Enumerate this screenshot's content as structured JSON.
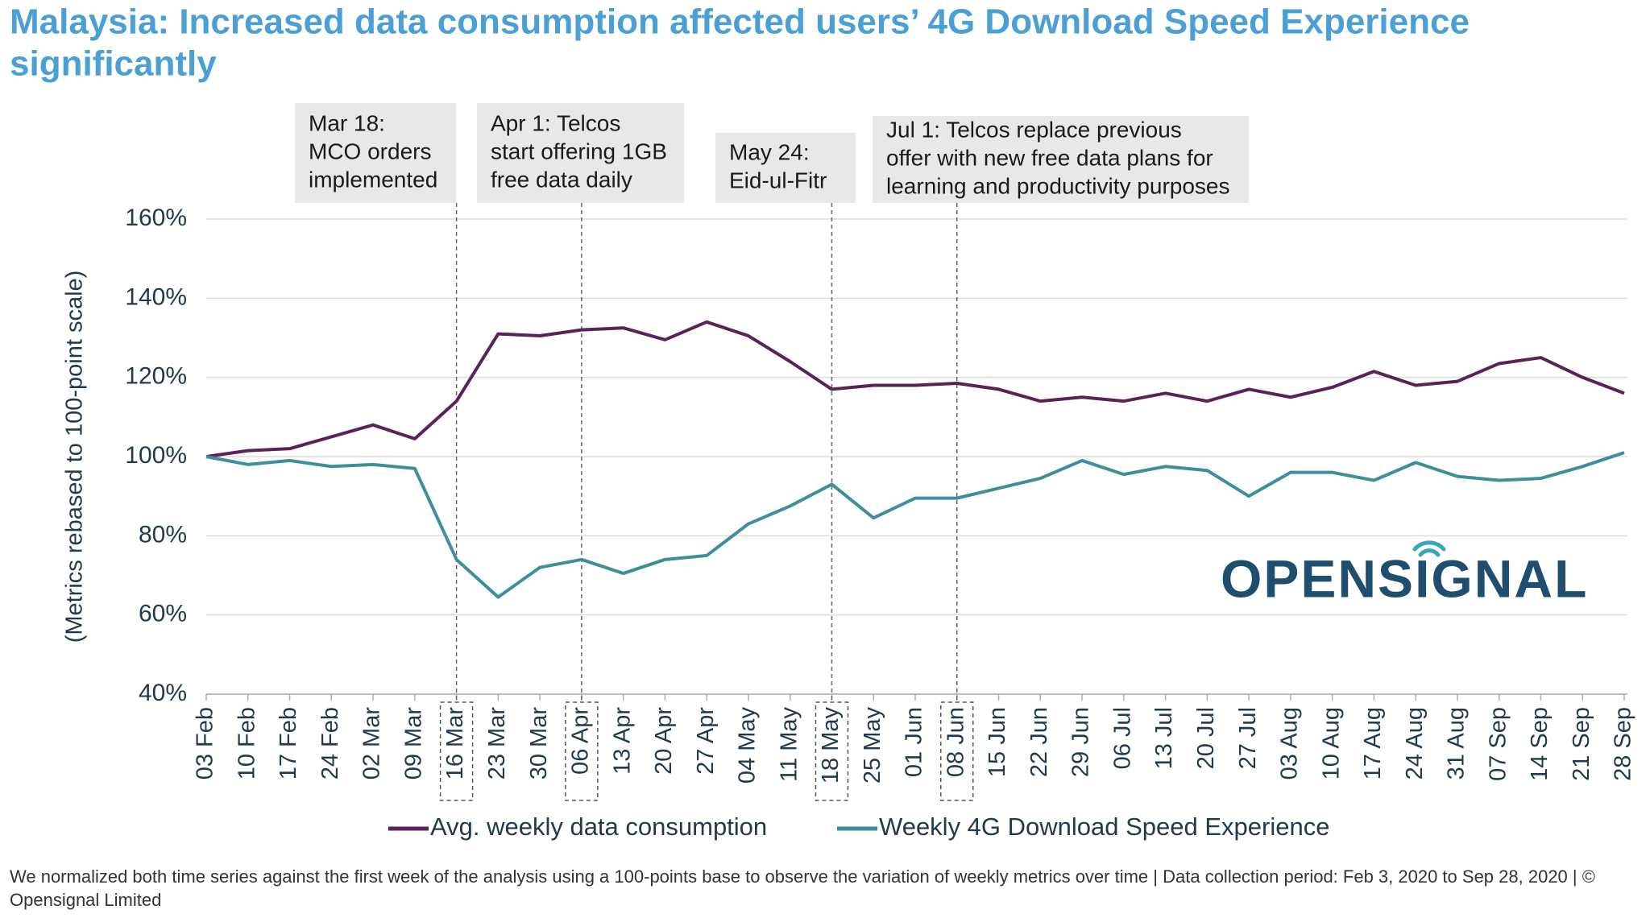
{
  "chart_data": {
    "type": "line",
    "title": [
      "Malaysia: Increased data consumption affected users’ 4G Download Speed Experience",
      "significantly"
    ],
    "y_label": "(Metrics rebased to 100-point scale)",
    "categories": [
      "03 Feb",
      "10 Feb",
      "17 Feb",
      "24 Feb",
      "02 Mar",
      "09 Mar",
      "16 Mar",
      "23 Mar",
      "30 Mar",
      "06 Apr",
      "13 Apr",
      "20 Apr",
      "27 Apr",
      "04 May",
      "11 May",
      "18 May",
      "25 May",
      "01 Jun",
      "08 Jun",
      "15 Jun",
      "22 Jun",
      "29 Jun",
      "06 Jul",
      "13 Jul",
      "20 Jul",
      "27 Jul",
      "03 Aug",
      "10 Aug",
      "17 Aug",
      "24 Aug",
      "31 Aug",
      "07 Sep",
      "14 Sep",
      "21 Sep",
      "28 Sep"
    ],
    "series": [
      {
        "name": "Avg. weekly data consumption",
        "color": "#5b2159",
        "values": [
          100,
          101.5,
          102,
          105,
          108,
          104.5,
          114,
          131,
          130.5,
          132,
          132.5,
          129.5,
          134,
          130.5,
          124,
          117,
          118,
          118,
          118.5,
          117,
          114,
          115,
          114,
          116,
          114,
          117,
          115,
          117.5,
          121.5,
          118,
          119,
          123.5,
          125,
          120,
          116
        ]
      },
      {
        "name": "Weekly 4G Download Speed Experience",
        "color": "#3d8f9c",
        "values": [
          100,
          98,
          99,
          97.5,
          98,
          97,
          74,
          64.5,
          72,
          74,
          70.5,
          74,
          75,
          83,
          87.5,
          93,
          84.5,
          89.5,
          89.5,
          92,
          94.5,
          99,
          95.5,
          97.5,
          96.5,
          90,
          96,
          96,
          94,
          98.5,
          95,
          94,
          94.5,
          97.5,
          101
        ]
      }
    ],
    "ylim": [
      40,
      160
    ],
    "yticks": [
      {
        "value": 40,
        "label": "40%"
      },
      {
        "value": 60,
        "label": "60%"
      },
      {
        "value": 80,
        "label": "80%"
      },
      {
        "value": 100,
        "label": "100%"
      },
      {
        "value": 120,
        "label": "120%"
      },
      {
        "value": 140,
        "label": "140%"
      },
      {
        "value": 160,
        "label": "160%"
      }
    ],
    "grid": true,
    "annotations": [
      {
        "x": "16 Mar",
        "lines": [
          "Mar 18:",
          "MCO orders",
          "implemented"
        ]
      },
      {
        "x": "06 Apr",
        "lines": [
          "Apr 1: Telcos",
          "start offering 1GB",
          "free data daily"
        ]
      },
      {
        "x": "18 May",
        "lines": [
          "May 24:",
          "Eid-ul-Fitr"
        ]
      },
      {
        "x": "08 Jun",
        "lines": [
          "Jul 1: Telcos replace previous",
          "offer with new free data plans for",
          "learning and productivity purposes"
        ]
      }
    ],
    "logo": "OPENSIGNAL",
    "footer": "We normalized both time series against the first week of the analysis using a 100-points base to observe the variation of weekly metrics over time | Data collection period: Feb 3, 2020 to Sep 28, 2020 | © Opensignal Limited"
  }
}
